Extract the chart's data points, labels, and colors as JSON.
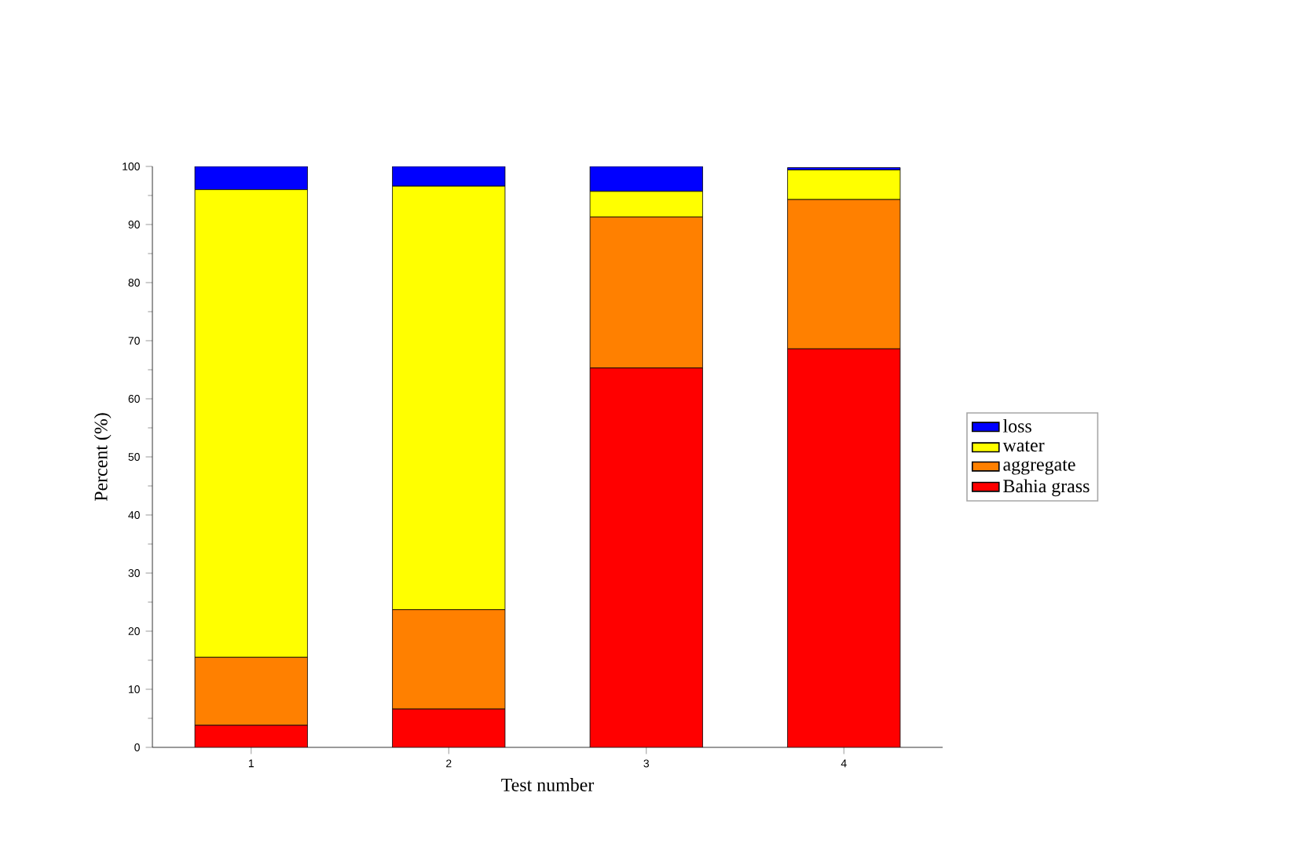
{
  "chart_data": {
    "type": "bar",
    "stacked": true,
    "xlabel": "Test number",
    "ylabel": "Percent (%)",
    "categories": [
      "1",
      "2",
      "3",
      "4"
    ],
    "series": [
      {
        "name": "Bahia grass",
        "color": "#ff0000",
        "values": [
          3.8,
          6.6,
          65.3,
          68.6
        ]
      },
      {
        "name": "aggregate",
        "color": "#ff8000",
        "values": [
          11.7,
          17.1,
          26.0,
          25.7
        ]
      },
      {
        "name": "water",
        "color": "#ffff00",
        "values": [
          80.5,
          72.9,
          4.4,
          5.1
        ]
      },
      {
        "name": "loss",
        "color": "#0000ff",
        "values": [
          4.0,
          3.4,
          4.3,
          0.4
        ]
      }
    ],
    "ylim": [
      0,
      100
    ],
    "yticks": [
      0,
      10,
      20,
      30,
      40,
      50,
      60,
      70,
      80,
      90,
      100
    ],
    "grid": false,
    "legend": "right"
  }
}
